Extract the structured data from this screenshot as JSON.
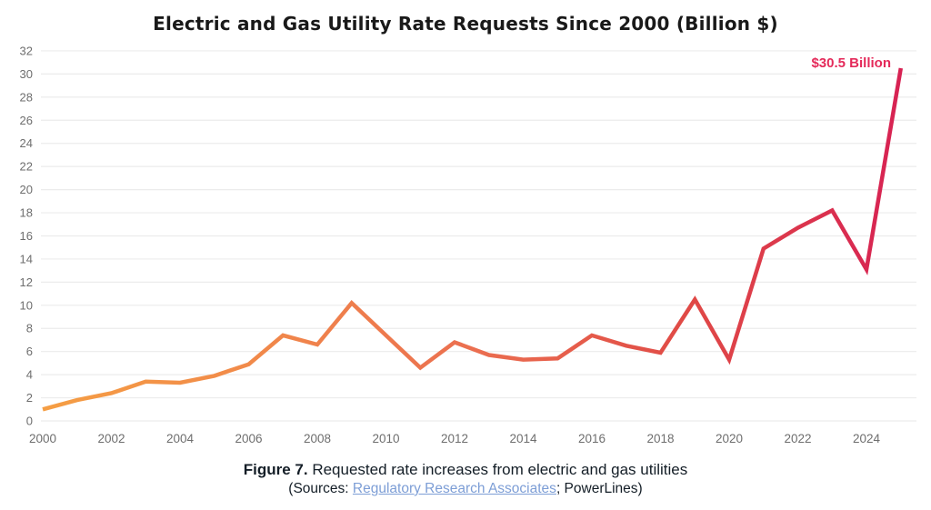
{
  "title": "Electric and Gas Utility Rate Requests Since 2000 (Billion $)",
  "annotation": {
    "text": "$30.5 Billion",
    "color": "#e42a5a"
  },
  "caption": {
    "figure_label": "Figure 7.",
    "figure_text": " Requested rate increases from electric and gas utilities",
    "sources_prefix": "(Sources: ",
    "source_link": "Regulatory Research Associates",
    "sources_suffix": "; PowerLines)",
    "link_color": "#7d9ed6",
    "text_color": "#141e27"
  },
  "chart_data": {
    "type": "line",
    "title": "Electric and Gas Utility Rate Requests Since 2000 (Billion $)",
    "xlabel": "",
    "ylabel": "",
    "x": [
      2000,
      2001,
      2002,
      2003,
      2004,
      2005,
      2006,
      2007,
      2008,
      2009,
      2010,
      2011,
      2012,
      2013,
      2014,
      2015,
      2016,
      2017,
      2018,
      2019,
      2020,
      2021,
      2022,
      2023,
      2024,
      2025
    ],
    "values": [
      1.0,
      1.8,
      2.4,
      3.4,
      3.3,
      3.9,
      4.9,
      7.4,
      6.6,
      10.2,
      7.4,
      4.6,
      6.8,
      5.7,
      5.3,
      5.4,
      7.4,
      6.5,
      5.9,
      10.5,
      5.3,
      14.9,
      16.7,
      18.2,
      13.1,
      30.5
    ],
    "ylim": [
      0,
      32
    ],
    "ytick_step": 2,
    "xticks": [
      2000,
      2002,
      2004,
      2006,
      2008,
      2010,
      2012,
      2014,
      2016,
      2018,
      2020,
      2022,
      2024
    ],
    "grid": "horizontal",
    "gridline_color": "#ececec",
    "tick_label_color": "#6e6e6e",
    "line_gradient": [
      "#f59e44",
      "#f1894a",
      "#eb6f50",
      "#e04a46",
      "#d72253"
    ],
    "line_width": 4.5,
    "legend": "none",
    "annotation": {
      "text": "$30.5 Billion",
      "x": 2025,
      "y": 30.5
    }
  }
}
